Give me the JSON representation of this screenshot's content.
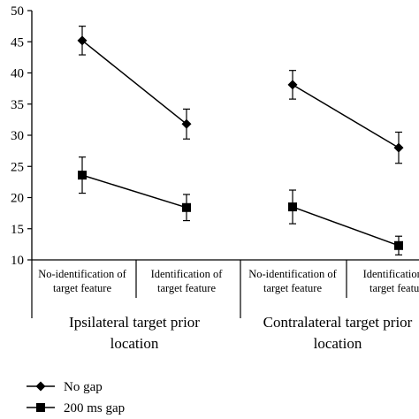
{
  "chart_data": {
    "type": "line",
    "ylim": [
      10,
      50
    ],
    "yticks": [
      10,
      15,
      20,
      25,
      30,
      35,
      40,
      45,
      50
    ],
    "groups": [
      {
        "label": [
          "Ipsilateral target prior",
          "location"
        ],
        "categories": [
          [
            "No-identification of",
            "target feature"
          ],
          [
            "Identification of",
            "target feature"
          ]
        ]
      },
      {
        "label": [
          "Contralateral target prior",
          "location"
        ],
        "categories": [
          [
            "No-identification of",
            "target feature"
          ],
          [
            "Identification of",
            "target feature"
          ]
        ]
      }
    ],
    "series": [
      {
        "name": "No gap",
        "marker": "diamond",
        "values": [
          [
            45.2,
            31.8
          ],
          [
            38.1,
            28.0
          ]
        ],
        "error": [
          [
            2.3,
            2.4
          ],
          [
            2.3,
            2.5
          ]
        ]
      },
      {
        "name": "200 ms gap",
        "marker": "square",
        "values": [
          [
            23.6,
            18.4
          ],
          [
            18.5,
            12.3
          ]
        ],
        "error": [
          [
            2.9,
            2.1
          ],
          [
            2.7,
            1.5
          ]
        ]
      }
    ],
    "legend_position": "bottom-left",
    "grid": false
  }
}
